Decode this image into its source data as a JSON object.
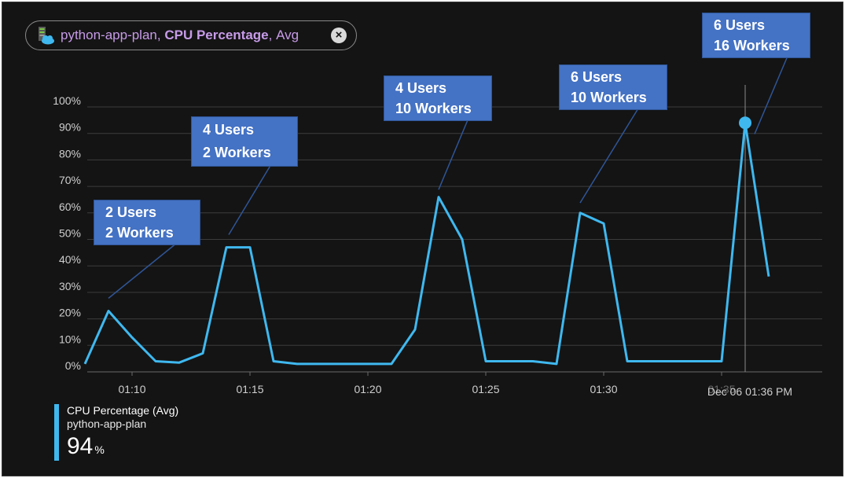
{
  "filter_pill": {
    "resource": "python-app-plan",
    "metric": "CPU Percentage",
    "aggregation": "Avg",
    "comma": ",",
    "close_glyph": "×",
    "icon": "app-service-plan-icon"
  },
  "legend": {
    "metric": "CPU Percentage (Avg)",
    "resource": "python-app-plan",
    "value": "94",
    "unit": "%",
    "color": "#3fb8ef"
  },
  "cursor": {
    "label": "Dec 06 01:36 PM"
  },
  "annotations": [
    {
      "line1": "2 Users",
      "line2": "2 Workers"
    },
    {
      "line1": "4 Users",
      "line2": "2 Workers"
    },
    {
      "line1": "4 Users",
      "line2": "10 Workers"
    },
    {
      "line1": "6 Users",
      "line2": "10 Workers"
    },
    {
      "line1": "6 Users",
      "line2": "16 Workers"
    }
  ],
  "chart_data": {
    "type": "line",
    "ylabel": "",
    "xlabel": "",
    "y_ticks": [
      "0%",
      "10%",
      "20%",
      "30%",
      "40%",
      "50%",
      "60%",
      "70%",
      "80%",
      "90%",
      "100%"
    ],
    "x_ticks": [
      "01:10",
      "01:15",
      "01:20",
      "01:25",
      "01:30",
      "01:35"
    ],
    "ylim": [
      0,
      100
    ],
    "xlim_minutes": [
      8,
      38
    ],
    "x_unit": "minutes after 01:00",
    "grid": true,
    "series": [
      {
        "name": "CPU Percentage (Avg)",
        "color": "#3fb8ef",
        "points": [
          [
            8,
            3
          ],
          [
            9,
            23
          ],
          [
            10,
            13
          ],
          [
            11,
            4
          ],
          [
            12,
            3.5
          ],
          [
            13,
            7
          ],
          [
            14,
            47
          ],
          [
            15,
            47
          ],
          [
            16,
            4
          ],
          [
            17,
            3
          ],
          [
            18,
            3
          ],
          [
            19,
            3
          ],
          [
            20,
            3
          ],
          [
            21,
            3
          ],
          [
            22,
            16
          ],
          [
            23,
            66
          ],
          [
            24,
            50
          ],
          [
            25,
            4
          ],
          [
            26,
            4
          ],
          [
            27,
            4
          ],
          [
            28,
            3
          ],
          [
            29,
            60
          ],
          [
            30,
            56
          ],
          [
            31,
            4
          ],
          [
            32,
            4
          ],
          [
            33,
            4
          ],
          [
            34,
            4
          ],
          [
            35,
            4
          ],
          [
            36,
            94
          ],
          [
            37,
            36
          ]
        ]
      }
    ],
    "highlight": {
      "x": 36,
      "y": 94
    }
  }
}
